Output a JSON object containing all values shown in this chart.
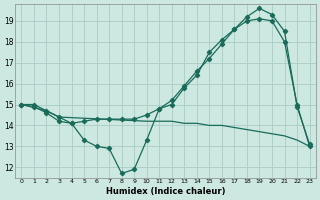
{
  "xlabel": "Humidex (Indice chaleur)",
  "bg_color": "#cce8e0",
  "grid_color": "#aaccC4",
  "line_color": "#1a6b5a",
  "xlim": [
    -0.5,
    23.5
  ],
  "ylim": [
    11.5,
    19.8
  ],
  "yticks": [
    12,
    13,
    14,
    15,
    16,
    17,
    18,
    19
  ],
  "xticks": [
    0,
    1,
    2,
    3,
    4,
    5,
    6,
    7,
    8,
    9,
    10,
    11,
    12,
    13,
    14,
    15,
    16,
    17,
    18,
    19,
    20,
    21,
    22,
    23
  ],
  "line1_x": [
    0,
    1,
    2,
    3,
    4,
    5,
    6,
    7,
    8,
    9,
    10,
    11,
    12,
    13,
    14,
    15,
    16,
    17,
    18,
    19,
    20,
    21,
    22,
    23
  ],
  "line1_y": [
    15.0,
    15.0,
    14.7,
    14.4,
    14.1,
    14.2,
    14.3,
    14.3,
    14.3,
    14.3,
    14.5,
    14.8,
    15.2,
    15.9,
    16.6,
    17.2,
    17.9,
    18.6,
    19.2,
    19.6,
    19.3,
    18.5,
    14.9,
    13.1
  ],
  "line2_x": [
    0,
    1,
    2,
    3,
    4,
    5,
    6,
    7,
    8,
    9,
    10,
    11,
    12,
    13,
    14,
    15,
    16,
    17,
    18,
    19,
    20,
    21,
    22,
    23
  ],
  "line2_y": [
    15.0,
    14.9,
    14.6,
    14.2,
    14.1,
    13.3,
    13.0,
    12.9,
    11.7,
    11.9,
    13.3,
    14.8,
    15.0,
    15.8,
    16.4,
    17.5,
    18.1,
    18.6,
    19.0,
    19.1,
    19.0,
    18.0,
    15.0,
    13.0
  ],
  "line3_x": [
    0,
    2,
    3,
    10,
    11,
    12,
    13,
    14,
    15,
    16,
    17,
    18,
    19,
    20,
    21,
    22,
    23
  ],
  "line3_y": [
    15.0,
    14.7,
    14.4,
    14.2,
    14.2,
    14.2,
    14.1,
    14.1,
    14.0,
    14.0,
    13.9,
    13.8,
    13.7,
    13.6,
    13.5,
    13.3,
    13.0
  ]
}
